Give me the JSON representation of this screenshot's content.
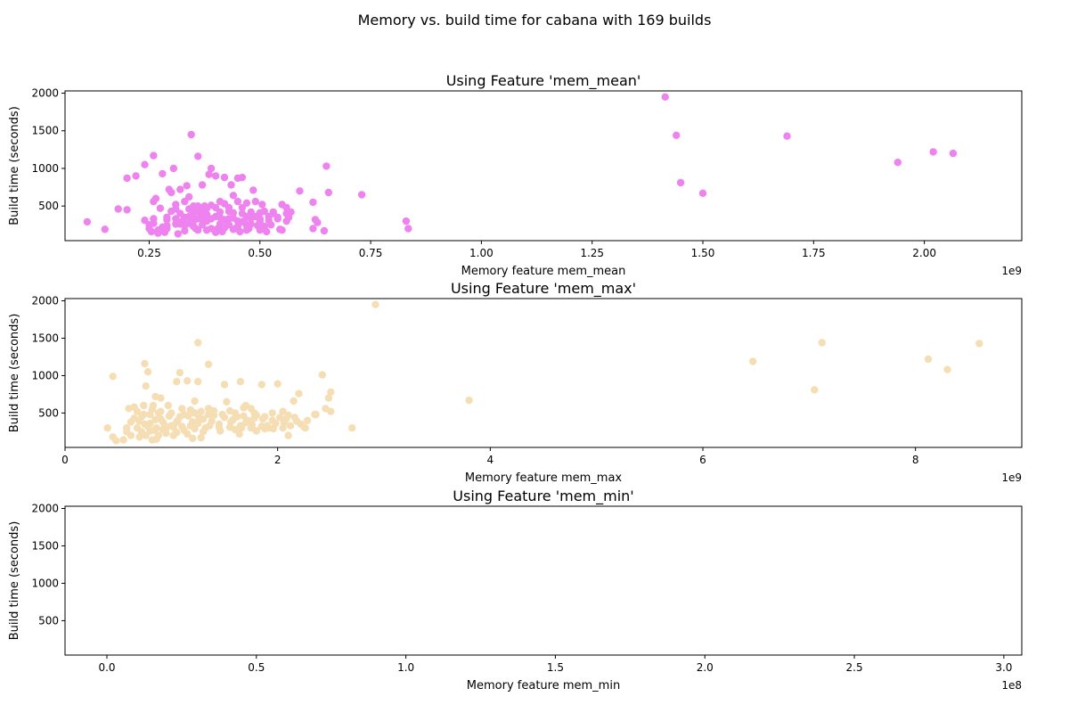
{
  "figure": {
    "suptitle": "Memory vs. build time for cabana with 169 builds"
  },
  "chart_data": [
    {
      "type": "scatter",
      "title": "Using Feature 'mem_mean'",
      "xlabel": "Memory feature mem_mean",
      "ylabel": "Build time (seconds)",
      "x_exponent_label": "1e9",
      "x_unit": "1e9",
      "xlim": [
        0.06,
        2.22
      ],
      "ylim": [
        40,
        2030
      ],
      "x_ticks": [
        0.25,
        0.5,
        0.75,
        1.0,
        1.25,
        1.5,
        1.75,
        2.0
      ],
      "x_tick_labels": [
        "0.25",
        "0.50",
        "0.75",
        "1.00",
        "1.25",
        "1.50",
        "1.75",
        "2.00"
      ],
      "y_ticks": [
        500,
        1000,
        1500,
        2000
      ],
      "y_tick_labels": [
        "500",
        "1000",
        "1500",
        "2000"
      ],
      "color": "#ee82ee",
      "grid": false,
      "legend": "none",
      "points": [
        [
          0.11,
          290
        ],
        [
          0.15,
          190
        ],
        [
          0.18,
          460
        ],
        [
          0.2,
          450
        ],
        [
          0.2,
          870
        ],
        [
          0.22,
          900
        ],
        [
          0.24,
          310
        ],
        [
          0.24,
          1050
        ],
        [
          0.25,
          250
        ],
        [
          0.25,
          200
        ],
        [
          0.255,
          160
        ],
        [
          0.26,
          330
        ],
        [
          0.26,
          1170
        ],
        [
          0.26,
          560
        ],
        [
          0.265,
          600
        ],
        [
          0.27,
          140
        ],
        [
          0.275,
          470
        ],
        [
          0.28,
          930
        ],
        [
          0.285,
          150
        ],
        [
          0.29,
          200
        ],
        [
          0.29,
          320
        ],
        [
          0.295,
          720
        ],
        [
          0.3,
          680
        ],
        [
          0.305,
          1000
        ],
        [
          0.31,
          460
        ],
        [
          0.31,
          520
        ],
        [
          0.315,
          130
        ],
        [
          0.32,
          720
        ],
        [
          0.32,
          400
        ],
        [
          0.325,
          300
        ],
        [
          0.33,
          560
        ],
        [
          0.33,
          240
        ],
        [
          0.335,
          770
        ],
        [
          0.34,
          620
        ],
        [
          0.34,
          460
        ],
        [
          0.345,
          1450
        ],
        [
          0.35,
          300
        ],
        [
          0.35,
          500
        ],
        [
          0.355,
          200
        ],
        [
          0.36,
          430
        ],
        [
          0.36,
          1160
        ],
        [
          0.365,
          350
        ],
        [
          0.37,
          780
        ],
        [
          0.375,
          500
        ],
        [
          0.38,
          300
        ],
        [
          0.385,
          920
        ],
        [
          0.39,
          1000
        ],
        [
          0.39,
          330
        ],
        [
          0.4,
          480
        ],
        [
          0.4,
          900
        ],
        [
          0.405,
          200
        ],
        [
          0.41,
          350
        ],
        [
          0.41,
          560
        ],
        [
          0.415,
          160
        ],
        [
          0.42,
          530
        ],
        [
          0.42,
          880
        ],
        [
          0.425,
          300
        ],
        [
          0.43,
          430
        ],
        [
          0.435,
          780
        ],
        [
          0.44,
          340
        ],
        [
          0.44,
          640
        ],
        [
          0.445,
          200
        ],
        [
          0.45,
          870
        ],
        [
          0.45,
          560
        ],
        [
          0.455,
          160
        ],
        [
          0.46,
          480
        ],
        [
          0.46,
          880
        ],
        [
          0.465,
          300
        ],
        [
          0.47,
          540
        ],
        [
          0.475,
          200
        ],
        [
          0.48,
          340
        ],
        [
          0.485,
          710
        ],
        [
          0.49,
          560
        ],
        [
          0.495,
          240
        ],
        [
          0.5,
          300
        ],
        [
          0.5,
          410
        ],
        [
          0.505,
          520
        ],
        [
          0.51,
          430
        ],
        [
          0.515,
          160
        ],
        [
          0.52,
          360
        ],
        [
          0.525,
          250
        ],
        [
          0.53,
          400
        ],
        [
          0.54,
          330
        ],
        [
          0.545,
          190
        ],
        [
          0.55,
          520
        ],
        [
          0.55,
          180
        ],
        [
          0.56,
          480
        ],
        [
          0.56,
          300
        ],
        [
          0.565,
          350
        ],
        [
          0.59,
          700
        ],
        [
          0.62,
          550
        ],
        [
          0.62,
          200
        ],
        [
          0.625,
          320
        ],
        [
          0.63,
          280
        ],
        [
          0.645,
          170
        ],
        [
          0.65,
          1030
        ],
        [
          0.655,
          680
        ],
        [
          0.73,
          650
        ],
        [
          0.83,
          300
        ],
        [
          0.835,
          200
        ],
        [
          1.415,
          1950
        ],
        [
          1.44,
          1440
        ],
        [
          1.45,
          810
        ],
        [
          1.5,
          670
        ],
        [
          1.69,
          1430
        ],
        [
          1.94,
          1080
        ],
        [
          2.02,
          1220
        ],
        [
          2.065,
          1200
        ],
        [
          0.36,
          330
        ],
        [
          0.38,
          470
        ],
        [
          0.43,
          250
        ],
        [
          0.47,
          360
        ],
        [
          0.33,
          350
        ],
        [
          0.52,
          310
        ],
        [
          0.28,
          220
        ],
        [
          0.37,
          250
        ],
        [
          0.41,
          420
        ],
        [
          0.44,
          410
        ],
        [
          0.31,
          330
        ],
        [
          0.48,
          260
        ],
        [
          0.39,
          510
        ],
        [
          0.35,
          230
        ],
        [
          0.42,
          210
        ],
        [
          0.46,
          400
        ],
        [
          0.34,
          360
        ],
        [
          0.5,
          180
        ],
        [
          0.29,
          350
        ],
        [
          0.53,
          420
        ],
        [
          0.38,
          180
        ],
        [
          0.45,
          300
        ],
        [
          0.32,
          260
        ],
        [
          0.4,
          360
        ],
        [
          0.36,
          500
        ],
        [
          0.47,
          240
        ],
        [
          0.43,
          330
        ],
        [
          0.56,
          400
        ],
        [
          0.27,
          180
        ],
        [
          0.49,
          360
        ],
        [
          0.35,
          410
        ],
        [
          0.41,
          260
        ],
        [
          0.3,
          430
        ],
        [
          0.44,
          190
        ],
        [
          0.37,
          430
        ],
        [
          0.51,
          230
        ],
        [
          0.26,
          270
        ],
        [
          0.33,
          170
        ],
        [
          0.39,
          200
        ],
        [
          0.42,
          320
        ],
        [
          0.46,
          290
        ],
        [
          0.54,
          350
        ],
        [
          0.36,
          180
        ],
        [
          0.4,
          150
        ],
        [
          0.45,
          230
        ],
        [
          0.31,
          260
        ],
        [
          0.48,
          420
        ],
        [
          0.38,
          390
        ],
        [
          0.34,
          270
        ],
        [
          0.43,
          480
        ],
        [
          0.5,
          330
        ],
        [
          0.57,
          420
        ],
        [
          0.37,
          320
        ],
        [
          0.41,
          180
        ],
        [
          0.29,
          240
        ],
        [
          0.47,
          180
        ],
        [
          0.35,
          340
        ]
      ]
    },
    {
      "type": "scatter",
      "title": "Using Feature 'mem_max'",
      "xlabel": "Memory feature mem_max",
      "ylabel": "Build time (seconds)",
      "x_exponent_label": "1e9",
      "x_unit": "1e9",
      "xlim": [
        0.0,
        9.0
      ],
      "ylim": [
        40,
        2030
      ],
      "x_ticks": [
        0,
        2,
        4,
        6,
        8
      ],
      "x_tick_labels": [
        "0",
        "2",
        "4",
        "6",
        "8"
      ],
      "y_ticks": [
        500,
        1000,
        1500,
        2000
      ],
      "y_tick_labels": [
        "500",
        "1000",
        "1500",
        "2000"
      ],
      "color": "#f5deb3",
      "grid": false,
      "legend": "none",
      "points": [
        [
          0.4,
          300
        ],
        [
          0.45,
          180
        ],
        [
          0.48,
          130
        ],
        [
          0.45,
          990
        ],
        [
          0.55,
          140
        ],
        [
          0.58,
          250
        ],
        [
          0.6,
          560
        ],
        [
          0.62,
          200
        ],
        [
          0.65,
          580
        ],
        [
          0.68,
          300
        ],
        [
          0.7,
          180
        ],
        [
          0.72,
          450
        ],
        [
          0.74,
          600
        ],
        [
          0.75,
          350
        ],
        [
          0.75,
          1160
        ],
        [
          0.76,
          860
        ],
        [
          0.78,
          1050
        ],
        [
          0.8,
          480
        ],
        [
          0.8,
          260
        ],
        [
          0.82,
          140
        ],
        [
          0.83,
          600
        ],
        [
          0.85,
          720
        ],
        [
          0.86,
          300
        ],
        [
          0.88,
          200
        ],
        [
          0.9,
          520
        ],
        [
          0.9,
          700
        ],
        [
          0.92,
          380
        ],
        [
          0.95,
          300
        ],
        [
          0.97,
          600
        ],
        [
          1.0,
          500
        ],
        [
          1.02,
          310
        ],
        [
          1.05,
          240
        ],
        [
          1.05,
          920
        ],
        [
          1.08,
          1040
        ],
        [
          1.1,
          560
        ],
        [
          1.1,
          320
        ],
        [
          1.12,
          480
        ],
        [
          1.15,
          930
        ],
        [
          1.18,
          540
        ],
        [
          1.2,
          380
        ],
        [
          1.22,
          660
        ],
        [
          1.22,
          290
        ],
        [
          1.25,
          1440
        ],
        [
          1.25,
          920
        ],
        [
          1.28,
          520
        ],
        [
          1.3,
          420
        ],
        [
          1.32,
          300
        ],
        [
          1.35,
          560
        ],
        [
          1.35,
          1150
        ],
        [
          1.4,
          470
        ],
        [
          1.45,
          310
        ],
        [
          1.5,
          880
        ],
        [
          1.52,
          650
        ],
        [
          1.55,
          310
        ],
        [
          1.6,
          500
        ],
        [
          1.62,
          450
        ],
        [
          1.65,
          920
        ],
        [
          1.68,
          460
        ],
        [
          1.7,
          600
        ],
        [
          1.72,
          400
        ],
        [
          1.75,
          300
        ],
        [
          1.78,
          500
        ],
        [
          1.8,
          260
        ],
        [
          1.85,
          880
        ],
        [
          1.88,
          450
        ],
        [
          1.9,
          330
        ],
        [
          1.95,
          500
        ],
        [
          2.0,
          890
        ],
        [
          2.05,
          300
        ],
        [
          2.08,
          420
        ],
        [
          2.1,
          200
        ],
        [
          2.15,
          660
        ],
        [
          2.18,
          390
        ],
        [
          2.2,
          760
        ],
        [
          2.25,
          310
        ],
        [
          2.35,
          480
        ],
        [
          2.42,
          1010
        ],
        [
          2.45,
          560
        ],
        [
          2.48,
          700
        ],
        [
          2.5,
          520
        ],
        [
          2.5,
          780
        ],
        [
          2.7,
          300
        ],
        [
          2.92,
          1950
        ],
        [
          3.8,
          670
        ],
        [
          6.47,
          1190
        ],
        [
          7.05,
          810
        ],
        [
          7.12,
          1440
        ],
        [
          8.12,
          1220
        ],
        [
          8.3,
          1080
        ],
        [
          8.6,
          1430
        ],
        [
          0.7,
          390
        ],
        [
          0.78,
          320
        ],
        [
          0.85,
          410
        ],
        [
          0.92,
          280
        ],
        [
          1.0,
          330
        ],
        [
          1.08,
          450
        ],
        [
          1.15,
          220
        ],
        [
          1.25,
          360
        ],
        [
          1.35,
          480
        ],
        [
          1.45,
          350
        ],
        [
          1.55,
          530
        ],
        [
          1.65,
          330
        ],
        [
          1.75,
          560
        ],
        [
          1.85,
          320
        ],
        [
          1.95,
          400
        ],
        [
          2.05,
          520
        ],
        [
          0.65,
          430
        ],
        [
          0.72,
          250
        ],
        [
          0.8,
          360
        ],
        [
          0.88,
          500
        ],
        [
          0.95,
          230
        ],
        [
          1.05,
          380
        ],
        [
          1.12,
          270
        ],
        [
          1.22,
          500
        ],
        [
          1.3,
          250
        ],
        [
          1.4,
          530
        ],
        [
          1.5,
          440
        ],
        [
          1.6,
          280
        ],
        [
          1.7,
          370
        ],
        [
          1.8,
          470
        ],
        [
          1.92,
          300
        ],
        [
          2.02,
          440
        ],
        [
          2.12,
          330
        ],
        [
          2.22,
          350
        ],
        [
          0.62,
          380
        ],
        [
          0.68,
          520
        ],
        [
          0.76,
          200
        ],
        [
          0.82,
          550
        ],
        [
          0.9,
          420
        ],
        [
          0.98,
          460
        ],
        [
          1.02,
          200
        ],
        [
          1.18,
          330
        ],
        [
          1.28,
          170
        ],
        [
          1.38,
          390
        ],
        [
          1.48,
          480
        ],
        [
          1.58,
          410
        ],
        [
          1.68,
          570
        ],
        [
          1.78,
          430
        ],
        [
          1.88,
          290
        ],
        [
          1.98,
          360
        ],
        [
          2.1,
          470
        ],
        [
          2.28,
          400
        ],
        [
          0.58,
          300
        ],
        [
          0.74,
          480
        ],
        [
          0.84,
          270
        ],
        [
          0.94,
          330
        ],
        [
          1.06,
          400
        ],
        [
          1.16,
          460
        ],
        [
          1.26,
          430
        ],
        [
          1.36,
          330
        ],
        [
          1.46,
          260
        ],
        [
          1.56,
          380
        ],
        [
          1.66,
          300
        ],
        [
          1.76,
          340
        ],
        [
          1.86,
          420
        ],
        [
          1.96,
          290
        ],
        [
          2.06,
          370
        ],
        [
          2.16,
          440
        ],
        [
          2.26,
          300
        ],
        [
          2.36,
          480
        ],
        [
          0.86,
          150
        ],
        [
          1.2,
          160
        ],
        [
          1.64,
          220
        ]
      ]
    },
    {
      "type": "scatter",
      "title": "Using Feature 'mem_min'",
      "xlabel": "Memory feature mem_min",
      "ylabel": "Build time (seconds)",
      "x_exponent_label": "1e8",
      "x_unit": "1e8",
      "xlim": [
        -0.14,
        3.06
      ],
      "ylim": [
        40,
        2030
      ],
      "x_ticks": [
        0.0,
        0.5,
        1.0,
        1.5,
        2.0,
        2.5,
        3.0
      ],
      "x_tick_labels": [
        "0.0",
        "0.5",
        "1.0",
        "1.5",
        "2.0",
        "2.5",
        "3.0"
      ],
      "y_ticks": [
        500,
        1000,
        1500,
        2000
      ],
      "y_tick_labels": [
        "500",
        "1000",
        "1500",
        "2000"
      ],
      "color": "#f5deb3",
      "grid": false,
      "legend": "none",
      "points": []
    }
  ]
}
